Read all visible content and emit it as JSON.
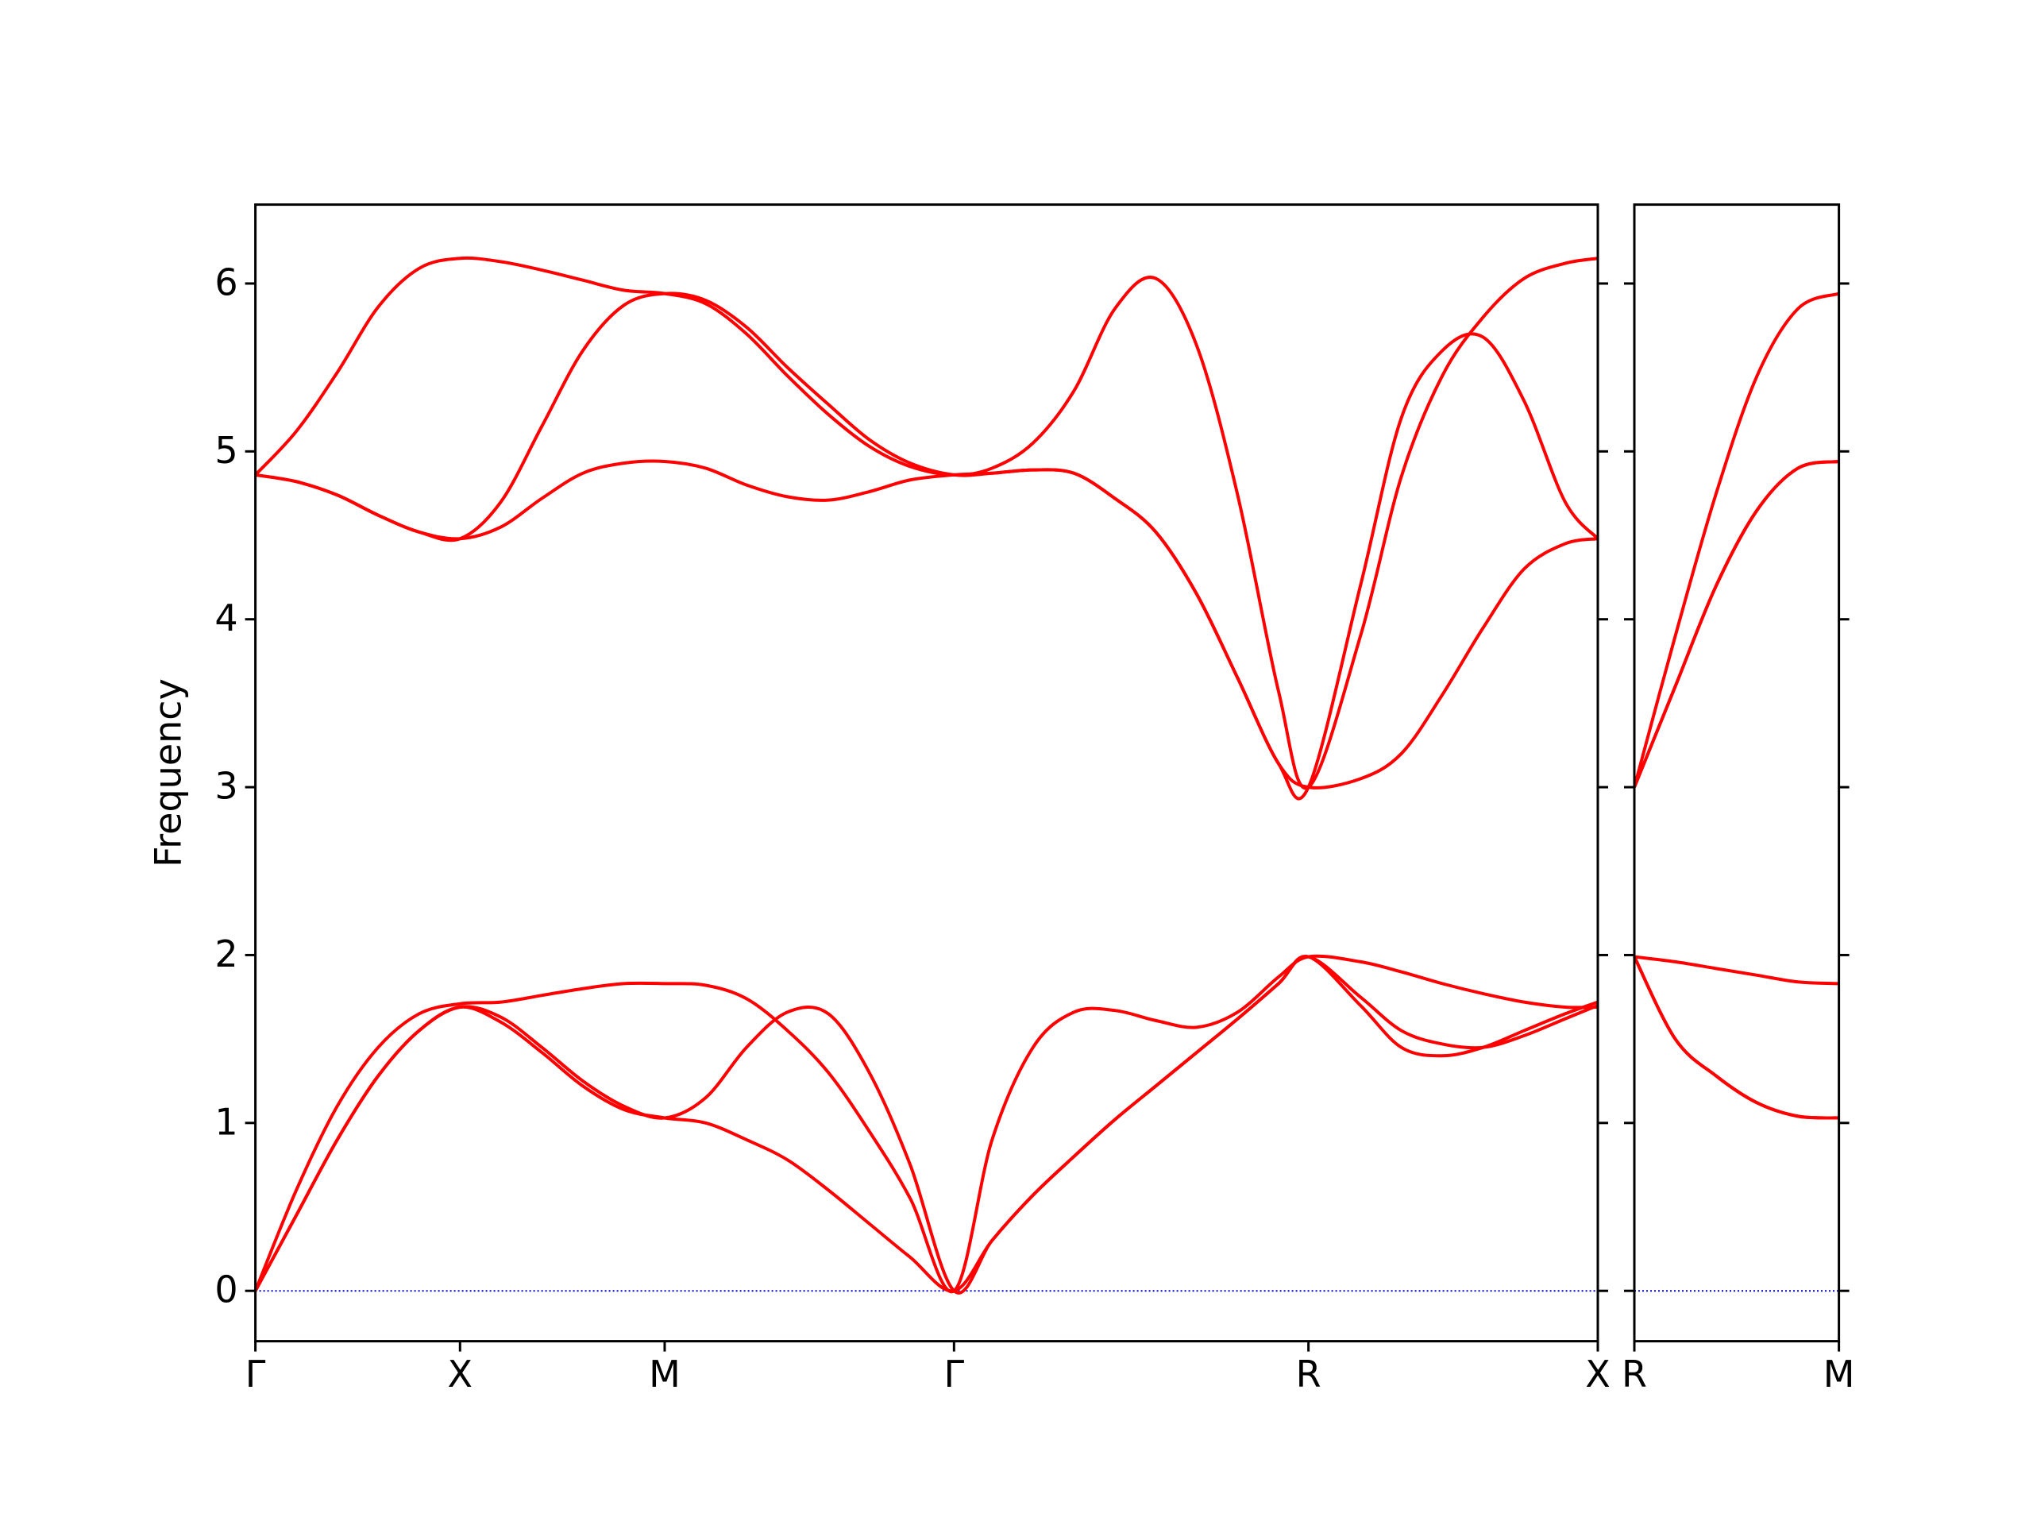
{
  "chart_data": [
    {
      "type": "line",
      "ylabel": "Frequency",
      "x": [
        0,
        0.1,
        0.2,
        0.3,
        0.4,
        0.5,
        0.6,
        0.7,
        0.8,
        0.9,
        1.0,
        1.1,
        1.2,
        1.3,
        1.4,
        1.5,
        1.6,
        1.707,
        1.8,
        1.9,
        2.0,
        2.1,
        2.2,
        2.3,
        2.4,
        2.5,
        2.573,
        2.7,
        2.8,
        2.9,
        3.0,
        3.1,
        3.2,
        3.28
      ],
      "series": [
        {
          "color": "#ff0000",
          "values": [
            4.86,
            5.12,
            5.47,
            5.86,
            6.09,
            6.15,
            6.13,
            6.08,
            6.02,
            5.96,
            5.94,
            5.88,
            5.7,
            5.45,
            5.22,
            5.03,
            4.91,
            4.86,
            4.9,
            5.05,
            5.36,
            5.85,
            6.03,
            5.63,
            4.74,
            3.57,
            3.0,
            3.9,
            4.85,
            5.45,
            5.8,
            6.03,
            6.12,
            6.15
          ]
        },
        {
          "color": "#ff0000",
          "values": [
            4.86,
            4.82,
            4.74,
            4.62,
            4.52,
            4.48,
            4.7,
            5.15,
            5.6,
            5.87,
            5.94,
            5.9,
            5.74,
            5.5,
            5.28,
            5.07,
            4.93,
            4.86,
            4.87,
            4.89,
            4.87,
            4.72,
            4.52,
            4.15,
            3.65,
            3.14,
            3.0,
            4.2,
            5.2,
            5.6,
            5.68,
            5.3,
            4.7,
            4.48
          ]
        },
        {
          "color": "#ff0000",
          "values": [
            4.86,
            4.82,
            4.74,
            4.62,
            4.52,
            4.48,
            4.55,
            4.72,
            4.87,
            4.93,
            4.94,
            4.9,
            4.8,
            4.73,
            4.71,
            4.76,
            4.83,
            4.86,
            4.87,
            4.89,
            4.87,
            4.72,
            4.52,
            4.15,
            3.65,
            3.14,
            3.0,
            3.05,
            3.2,
            3.55,
            3.95,
            4.3,
            4.45,
            4.48
          ]
        },
        {
          "color": "#ff0000",
          "values": [
            0,
            0.6,
            1.1,
            1.45,
            1.65,
            1.71,
            1.72,
            1.76,
            1.8,
            1.83,
            1.83,
            1.82,
            1.74,
            1.55,
            1.3,
            0.95,
            0.55,
            0,
            0.9,
            1.45,
            1.66,
            1.67,
            1.61,
            1.57,
            1.66,
            1.87,
            1.99,
            1.96,
            1.9,
            1.83,
            1.77,
            1.72,
            1.69,
            1.69
          ]
        },
        {
          "color": "#ff0000",
          "values": [
            0,
            0.45,
            0.9,
            1.28,
            1.55,
            1.69,
            1.63,
            1.45,
            1.25,
            1.1,
            1.03,
            1.15,
            1.45,
            1.66,
            1.65,
            1.3,
            0.75,
            0,
            0.3,
            0.57,
            0.8,
            1.02,
            1.22,
            1.42,
            1.62,
            1.83,
            1.99,
            1.7,
            1.45,
            1.4,
            1.45,
            1.55,
            1.65,
            1.72
          ]
        },
        {
          "color": "#ff0000",
          "values": [
            0,
            0.45,
            0.9,
            1.28,
            1.55,
            1.69,
            1.6,
            1.42,
            1.22,
            1.08,
            1.03,
            1.0,
            0.9,
            0.78,
            0.6,
            0.4,
            0.2,
            0,
            0.3,
            0.57,
            0.8,
            1.02,
            1.22,
            1.42,
            1.62,
            1.83,
            1.99,
            1.75,
            1.55,
            1.47,
            1.45,
            1.52,
            1.62,
            1.7
          ]
        }
      ],
      "xlim": [
        0,
        3.28
      ],
      "xticks": [
        {
          "value": 0,
          "label": "Γ"
        },
        {
          "value": 0.5,
          "label": "X"
        },
        {
          "value": 1.0,
          "label": "M"
        },
        {
          "value": 1.707,
          "label": "Γ"
        },
        {
          "value": 2.573,
          "label": "R"
        },
        {
          "value": 3.28,
          "label": "X"
        }
      ],
      "ylim": [
        -0.3,
        6.47
      ],
      "yticks": [
        0,
        1,
        2,
        3,
        4,
        5,
        6
      ],
      "show_ytick_labels": true,
      "hlines": [
        0
      ],
      "hline_color": "#0000cc"
    },
    {
      "type": "line",
      "x": [
        0,
        0.1,
        0.2,
        0.3,
        0.4,
        0.5
      ],
      "series": [
        {
          "color": "#ff0000",
          "values": [
            3.0,
            3.9,
            4.75,
            5.45,
            5.85,
            5.94
          ]
        },
        {
          "color": "#ff0000",
          "values": [
            3.0,
            3.6,
            4.2,
            4.65,
            4.9,
            4.94
          ]
        },
        {
          "color": "#ff0000",
          "values": [
            3.0,
            3.6,
            4.2,
            4.65,
            4.9,
            4.94
          ]
        },
        {
          "color": "#ff0000",
          "values": [
            1.99,
            1.96,
            1.92,
            1.88,
            1.84,
            1.83
          ]
        },
        {
          "color": "#ff0000",
          "values": [
            1.99,
            1.5,
            1.28,
            1.12,
            1.04,
            1.03
          ]
        },
        {
          "color": "#ff0000",
          "values": [
            1.99,
            1.5,
            1.28,
            1.12,
            1.04,
            1.03
          ]
        }
      ],
      "xlim": [
        0,
        0.5
      ],
      "xticks": [
        {
          "value": 0,
          "label": "R"
        },
        {
          "value": 0.5,
          "label": "M"
        }
      ],
      "ylim": [
        -0.3,
        6.47
      ],
      "yticks": [
        0,
        1,
        2,
        3,
        4,
        5,
        6
      ],
      "show_ytick_labels": false,
      "hlines": [
        0
      ],
      "hline_color": "#0000cc"
    }
  ]
}
